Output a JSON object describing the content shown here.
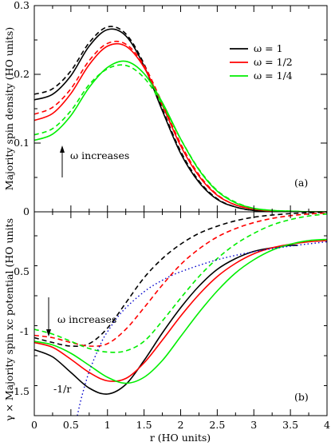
{
  "chart_data": [
    {
      "type": "line",
      "panel_label": "(a)",
      "ylabel": "Majority spin density (HO units)",
      "xlim": [
        0,
        4
      ],
      "ylim": [
        0,
        0.3
      ],
      "yticks": [
        "0",
        "0.1",
        "0.2",
        "0.3"
      ],
      "legend": {
        "position": "top-right",
        "entries": [
          {
            "label": "ω = 1",
            "color": "#000000"
          },
          {
            "label": "ω = 1/2",
            "color": "#ff0000"
          },
          {
            "label": "ω = 1/4",
            "color": "#00ee00"
          }
        ]
      },
      "annotation": "ω increases",
      "series": [
        {
          "name": "ω = 1",
          "style": "solid",
          "color": "#000000",
          "x": [
            0,
            0.25,
            0.5,
            0.75,
            1.0,
            1.25,
            1.5,
            1.75,
            2.0,
            2.25,
            2.5,
            2.75,
            3.0,
            3.25,
            3.5,
            3.75,
            4.0
          ],
          "y": [
            0.163,
            0.171,
            0.198,
            0.241,
            0.265,
            0.256,
            0.212,
            0.147,
            0.085,
            0.043,
            0.018,
            0.007,
            0.002,
            0.001,
            0,
            0,
            0
          ]
        },
        {
          "style": "dashed",
          "color": "#000000",
          "x": [
            0,
            0.25,
            0.5,
            0.75,
            1.0,
            1.25,
            1.5,
            1.75,
            2.0,
            2.25,
            2.5,
            2.75,
            3.0,
            3.25,
            3.5,
            3.75,
            4.0
          ],
          "y": [
            0.171,
            0.179,
            0.205,
            0.246,
            0.269,
            0.259,
            0.215,
            0.15,
            0.088,
            0.045,
            0.019,
            0.007,
            0.002,
            0.001,
            0,
            0,
            0
          ]
        },
        {
          "name": "ω = 1/2",
          "style": "solid",
          "color": "#ff0000",
          "x": [
            0,
            0.25,
            0.5,
            0.75,
            1.0,
            1.25,
            1.5,
            1.75,
            2.0,
            2.25,
            2.5,
            2.75,
            3.0,
            3.25,
            3.5,
            3.75,
            4.0
          ],
          "y": [
            0.133,
            0.143,
            0.172,
            0.214,
            0.241,
            0.241,
            0.21,
            0.155,
            0.096,
            0.052,
            0.024,
            0.01,
            0.004,
            0.001,
            0,
            0,
            0
          ]
        },
        {
          "style": "dashed",
          "color": "#ff0000",
          "x": [
            0,
            0.25,
            0.5,
            0.75,
            1.0,
            1.25,
            1.5,
            1.75,
            2.0,
            2.25,
            2.5,
            2.75,
            3.0,
            3.25,
            3.5,
            3.75,
            4.0
          ],
          "y": [
            0.142,
            0.152,
            0.179,
            0.22,
            0.245,
            0.244,
            0.213,
            0.158,
            0.099,
            0.054,
            0.025,
            0.01,
            0.004,
            0.001,
            0,
            0,
            0
          ]
        },
        {
          "name": "ω = 1/4",
          "style": "solid",
          "color": "#00ee00",
          "x": [
            0,
            0.25,
            0.5,
            0.75,
            1.0,
            1.25,
            1.5,
            1.75,
            2.0,
            2.25,
            2.5,
            2.75,
            3.0,
            3.25,
            3.5,
            3.75,
            4.0
          ],
          "y": [
            0.104,
            0.113,
            0.14,
            0.181,
            0.21,
            0.219,
            0.201,
            0.159,
            0.106,
            0.061,
            0.03,
            0.013,
            0.005,
            0.002,
            0.001,
            0,
            0
          ]
        },
        {
          "style": "dashed",
          "color": "#00ee00",
          "x": [
            0,
            0.25,
            0.5,
            0.75,
            1.0,
            1.25,
            1.5,
            1.75,
            2.0,
            2.25,
            2.5,
            2.75,
            3.0,
            3.25,
            3.5,
            3.75,
            4.0
          ],
          "y": [
            0.112,
            0.121,
            0.147,
            0.185,
            0.208,
            0.213,
            0.195,
            0.156,
            0.106,
            0.062,
            0.031,
            0.014,
            0.005,
            0.002,
            0.001,
            0,
            0
          ]
        }
      ]
    },
    {
      "type": "line",
      "panel_label": "(b)",
      "xlabel": "r (HO units)",
      "ylabel": "γ × Majority spin xc potential (HO units",
      "xlim": [
        0,
        4
      ],
      "ylim": [
        -1.7,
        0
      ],
      "xticks": [
        "0",
        "0.5",
        "1",
        "1.5",
        "2",
        "2.5",
        "3",
        "3.5",
        "4"
      ],
      "yticks": [
        "-1.5",
        "-1",
        "-0.5"
      ],
      "annotation": "ω increases",
      "curve_label": "-1/r",
      "series": [
        {
          "style": "solid",
          "color": "#000000",
          "x": [
            0,
            0.25,
            0.5,
            0.75,
            1.0,
            1.25,
            1.5,
            1.75,
            2.0,
            2.25,
            2.5,
            2.75,
            3.0,
            3.25,
            3.5,
            3.6
          ],
          "y": [
            -1.15,
            -1.21,
            -1.34,
            -1.47,
            -1.52,
            -1.44,
            -1.24,
            -1.01,
            -0.8,
            -0.62,
            -0.48,
            -0.39,
            -0.33,
            -0.3,
            -0.28,
            -0.28
          ]
        },
        {
          "style": "dashed",
          "color": "#000000",
          "x": [
            0,
            0.25,
            0.5,
            0.75,
            1.0,
            1.25,
            1.5,
            1.75,
            2.0,
            2.25,
            2.5,
            2.75,
            3.0,
            3.25,
            3.5,
            3.75,
            4.0
          ],
          "y": [
            -1.05,
            -1.09,
            -1.12,
            -1.1,
            -0.97,
            -0.76,
            -0.55,
            -0.39,
            -0.27,
            -0.18,
            -0.12,
            -0.075,
            -0.045,
            -0.027,
            -0.015,
            -0.008,
            -0.004
          ]
        },
        {
          "style": "solid",
          "color": "#ff0000",
          "x": [
            0,
            0.25,
            0.5,
            0.75,
            1.0,
            1.25,
            1.5,
            1.75,
            2.0,
            2.25,
            2.5,
            2.75,
            3.0,
            3.25,
            3.5,
            3.75,
            4.0
          ],
          "y": [
            -1.09,
            -1.13,
            -1.23,
            -1.34,
            -1.41,
            -1.39,
            -1.26,
            -1.07,
            -0.87,
            -0.69,
            -0.54,
            -0.43,
            -0.35,
            -0.3,
            -0.27,
            -0.25,
            -0.24
          ]
        },
        {
          "style": "dashed",
          "color": "#ff0000",
          "x": [
            0,
            0.25,
            0.5,
            0.75,
            1.0,
            1.25,
            1.5,
            1.75,
            2.0,
            2.25,
            2.5,
            2.75,
            3.0,
            3.25,
            3.5,
            3.75,
            4.0
          ],
          "y": [
            -1.03,
            -1.05,
            -1.09,
            -1.12,
            -1.1,
            -0.98,
            -0.8,
            -0.61,
            -0.44,
            -0.31,
            -0.21,
            -0.14,
            -0.09,
            -0.055,
            -0.032,
            -0.018,
            -0.01
          ]
        },
        {
          "style": "solid",
          "color": "#00ee00",
          "x": [
            0,
            0.25,
            0.5,
            0.75,
            1.0,
            1.25,
            1.5,
            1.75,
            2.0,
            2.25,
            2.5,
            2.75,
            3.0,
            3.25,
            3.5,
            3.75,
            4.0
          ],
          "y": [
            -1.08,
            -1.11,
            -1.18,
            -1.28,
            -1.38,
            -1.43,
            -1.38,
            -1.24,
            -1.04,
            -0.84,
            -0.66,
            -0.51,
            -0.4,
            -0.32,
            -0.27,
            -0.24,
            -0.23
          ]
        },
        {
          "style": "dashed",
          "color": "#00ee00",
          "x": [
            0,
            0.25,
            0.5,
            0.75,
            1.0,
            1.25,
            1.5,
            1.75,
            2.0,
            2.25,
            2.5,
            2.75,
            3.0,
            3.25,
            3.5,
            3.75,
            4.0
          ],
          "y": [
            -0.98,
            -1.02,
            -1.08,
            -1.14,
            -1.17,
            -1.16,
            -1.08,
            -0.91,
            -0.72,
            -0.54,
            -0.39,
            -0.27,
            -0.18,
            -0.11,
            -0.065,
            -0.035,
            -0.018
          ]
        },
        {
          "style": "dotted",
          "color": "#0000cc",
          "x": [
            0.588,
            0.65,
            0.75,
            0.9,
            1.0,
            1.2,
            1.5,
            1.75,
            2.0,
            2.5,
            3.0,
            3.5,
            4.0
          ],
          "y": [
            -1.7,
            -1.538,
            -1.333,
            -1.111,
            -1.0,
            -0.833,
            -0.667,
            -0.571,
            -0.5,
            -0.4,
            -0.333,
            -0.286,
            -0.25
          ]
        }
      ]
    }
  ]
}
